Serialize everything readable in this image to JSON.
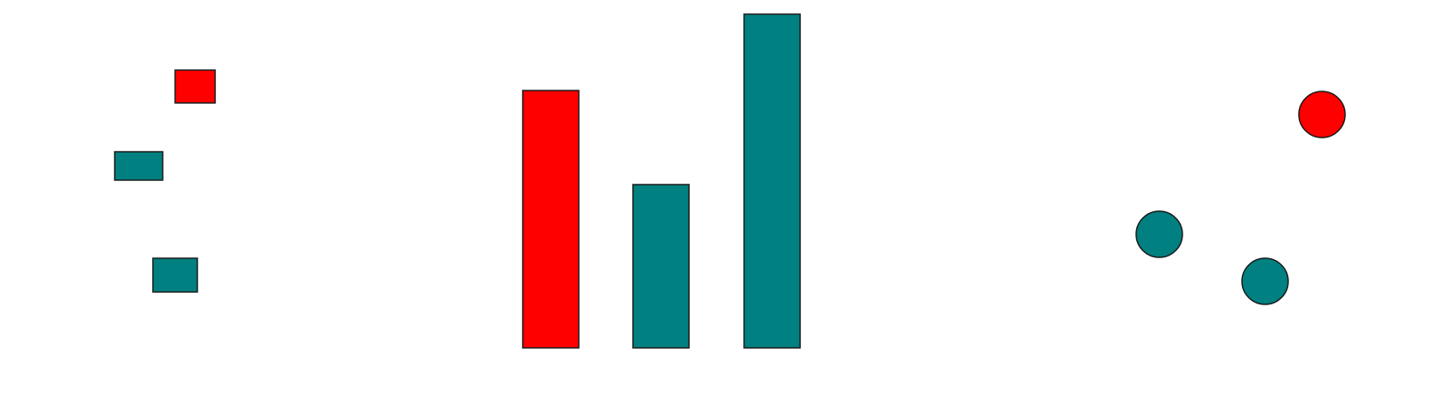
{
  "colors": {
    "red": "#ff0000",
    "teal": "#008080",
    "outline": "#1a1a1a",
    "background": "#ffffff"
  },
  "groups": {
    "rectangles": {
      "count": 3,
      "fills": [
        "red",
        "teal",
        "teal"
      ]
    },
    "bars": {
      "count": 3,
      "fills": [
        "red",
        "teal",
        "teal"
      ],
      "relative_heights": [
        0.77,
        0.49,
        1.0
      ]
    },
    "circles": {
      "count": 3,
      "fills": [
        "red",
        "teal",
        "teal"
      ]
    }
  }
}
